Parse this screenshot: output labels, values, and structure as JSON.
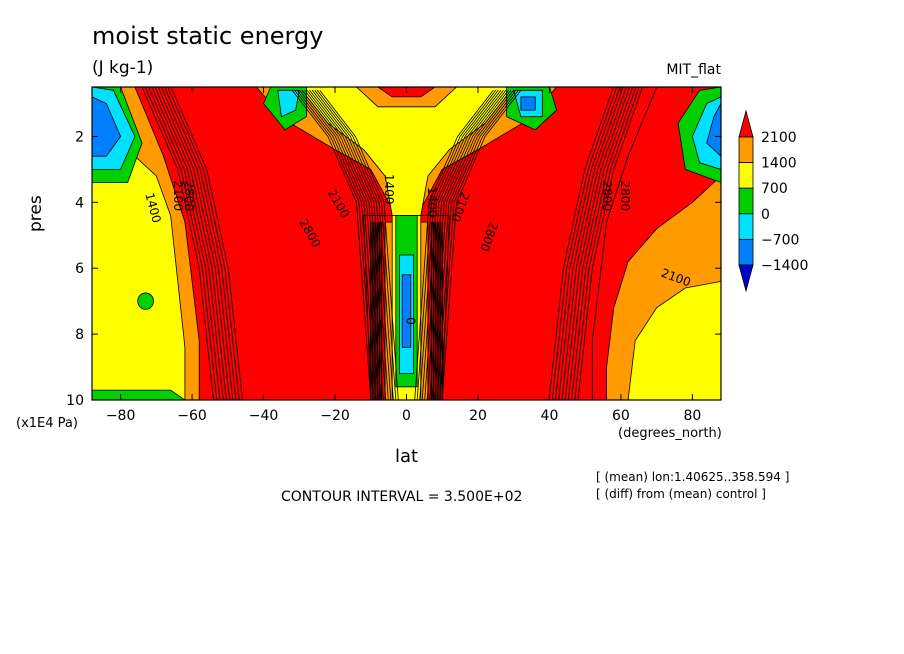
{
  "header": {
    "title": "moist static energy",
    "units": "(J kg-1)",
    "run_name": "MIT_flat"
  },
  "axes": {
    "ylabel": "pres",
    "yunits": "(x1E4 Pa)",
    "xlabel": "lat",
    "xunits": "(degrees_north)"
  },
  "footer": {
    "contour_interval": "CONTOUR INTERVAL = 3.500E+02",
    "note_mean": "[ (mean) lon:1.40625..358.594 ]",
    "note_diff": "[ (diff) from (mean) control ]"
  },
  "chart_data": {
    "type": "heatmap",
    "title": "moist static energy",
    "units": "(J kg-1)",
    "xlabel": "lat",
    "xunits": "(degrees_north)",
    "ylabel": "pres",
    "yunits": "(x1E4 Pa)",
    "xlim": [
      -88,
      88
    ],
    "ylim": [
      10,
      0.5
    ],
    "x_ticks": [
      -80,
      -60,
      -40,
      -20,
      0,
      20,
      40,
      60,
      80
    ],
    "y_ticks": [
      2,
      4,
      6,
      8,
      10
    ],
    "contour_interval": 350,
    "colorbar": {
      "levels": [
        2100,
        1400,
        700,
        0,
        -700,
        -1400
      ],
      "colors": [
        "#ff0000",
        "#ff9a00",
        "#ffff00",
        "#00d000",
        "#00e0ff",
        "#0080ff",
        "#0000cc"
      ]
    },
    "colors": {
      "red": "#ff0000",
      "orange": "#ff9a00",
      "yellow": "#ffff00",
      "green": "#00d000",
      "cyan": "#00e0ff",
      "blue": "#0080ff",
      "darkblue": "#0000cc"
    },
    "contour_labels": [
      {
        "text": "1400",
        "x": -72,
        "y": 4.2,
        "angle": 75
      },
      {
        "text": "2100",
        "x": -65,
        "y": 3.8,
        "angle": 90
      },
      {
        "text": "2800",
        "x": -62,
        "y": 3.8,
        "angle": 90
      },
      {
        "text": "1400",
        "x": -6,
        "y": 3.6,
        "angle": 90
      },
      {
        "text": "2100",
        "x": -20,
        "y": 4.1,
        "angle": 60
      },
      {
        "text": "2800",
        "x": -28,
        "y": 5.0,
        "angle": 60
      },
      {
        "text": "1400",
        "x": 6,
        "y": 4.0,
        "angle": 90
      },
      {
        "text": "2100",
        "x": 14,
        "y": 4.1,
        "angle": 110
      },
      {
        "text": "2800",
        "x": 22,
        "y": 5.0,
        "angle": 110
      },
      {
        "text": "2800",
        "x": 55,
        "y": 3.8,
        "angle": 90
      },
      {
        "text": "2800",
        "x": 60,
        "y": 3.8,
        "angle": 90
      },
      {
        "text": "2100",
        "x": 75,
        "y": 6.4,
        "angle": 20
      },
      {
        "text": "0",
        "x": 0,
        "y": 7.6,
        "angle": 90
      }
    ]
  }
}
